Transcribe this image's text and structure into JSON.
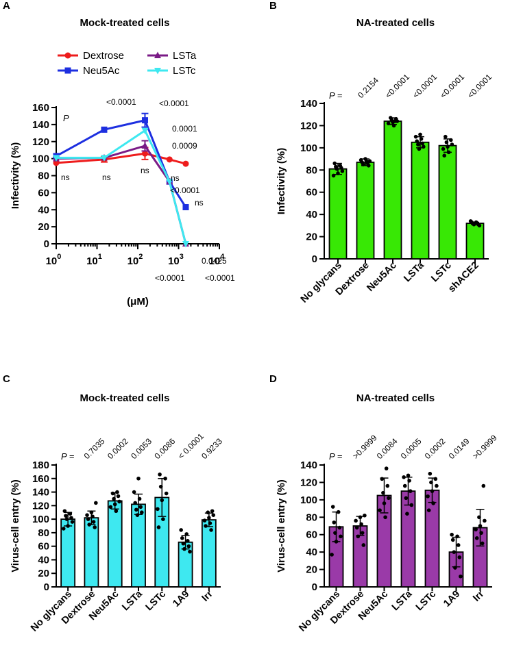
{
  "chart_data": [
    {
      "panel": "A",
      "type": "line",
      "title": "Mock-treated cells",
      "xlabel": "(μM)",
      "ylabel": "Infectivity (%)",
      "xscale": "log",
      "xlim_exp": [
        0,
        4
      ],
      "xtick_base": "10",
      "xtick_exponents": [
        "0",
        "1",
        "2",
        "3",
        "4"
      ],
      "ylim": [
        0,
        160
      ],
      "yticks": [
        0,
        20,
        40,
        60,
        80,
        100,
        120,
        140,
        160
      ],
      "p_label": "P",
      "legend": [
        {
          "name": "Dextrose",
          "color": "#ee1c1c",
          "marker": "circle"
        },
        {
          "name": "Neu5Ac",
          "color": "#1d2fe0",
          "marker": "square"
        },
        {
          "name": "LSTa",
          "color": "#7a1a86",
          "marker": "triangle"
        },
        {
          "name": "LSTc",
          "color": "#3ee8f0",
          "marker": "triangle-down"
        }
      ],
      "series": [
        {
          "name": "Dextrose",
          "x": [
            1,
            15,
            150,
            600,
            1500
          ],
          "y": [
            95,
            99,
            106,
            99,
            94
          ],
          "err": [
            0,
            3,
            7,
            0,
            0
          ]
        },
        {
          "name": "Neu5Ac",
          "x": [
            1,
            15,
            150,
            600,
            1500
          ],
          "y": [
            103,
            134,
            145,
            73,
            43
          ],
          "err": [
            0,
            0,
            8,
            0,
            0
          ]
        },
        {
          "name": "LSTa",
          "x": [
            1,
            15,
            150,
            600,
            1500
          ],
          "y": [
            100,
            101,
            115,
            73,
            0
          ],
          "err": [
            0,
            0,
            6,
            0,
            0
          ]
        },
        {
          "name": "LSTc",
          "x": [
            1,
            15,
            150,
            600,
            1500
          ],
          "y": [
            101,
            101,
            133,
            73,
            0
          ],
          "err": [
            0,
            0,
            0,
            0,
            0
          ]
        }
      ],
      "annotations": [
        "<0.0001",
        "<0.0001",
        "0.0001",
        "0.0009",
        "ns",
        "ns",
        "ns",
        "ns",
        "ns",
        "<0.0001",
        "0.0425",
        "<0.0001",
        "<0.0001"
      ]
    },
    {
      "panel": "B",
      "type": "bar",
      "title": "NA-treated cells",
      "ylabel": "Infectivity (%)",
      "bar_color": "#38e805",
      "ylim": [
        0,
        140
      ],
      "yticks": [
        0,
        20,
        40,
        60,
        80,
        100,
        120,
        140
      ],
      "p_label": "P =",
      "categories": [
        "No glycans",
        "Dextrose",
        "Neu5Ac",
        "LSTa",
        "LSTc",
        "shACE2"
      ],
      "values": [
        81,
        87,
        124,
        105,
        102,
        32
      ],
      "err": [
        5,
        3,
        3,
        5,
        6,
        1
      ],
      "pvalues": [
        "",
        "0.2154",
        "<0.0001",
        "<0.0001",
        "<0.0001",
        "<0.0001"
      ],
      "points": [
        [
          75,
          77,
          79,
          81,
          82,
          83,
          84,
          86
        ],
        [
          84,
          85,
          86,
          87,
          88,
          89,
          90,
          88
        ],
        [
          120,
          122,
          123,
          124,
          125,
          126,
          127,
          124
        ],
        [
          99,
          101,
          103,
          104,
          106,
          108,
          110,
          112
        ],
        [
          93,
          96,
          99,
          101,
          103,
          105,
          107,
          110
        ],
        [
          30,
          31,
          31,
          32,
          32,
          33,
          33,
          34
        ]
      ]
    },
    {
      "panel": "C",
      "type": "bar",
      "title": "Mock-treated cells",
      "ylabel": "Virus-cell entry (%)",
      "bar_color": "#3ee8f0",
      "ylim": [
        0,
        180
      ],
      "yticks": [
        0,
        20,
        40,
        60,
        80,
        100,
        120,
        140,
        160,
        180
      ],
      "p_label": "P =",
      "categories": [
        "No glycans",
        "Dextrose",
        "Neu5Ac",
        "LSTa",
        "LSTc",
        "1A9",
        "Irr"
      ],
      "values": [
        100,
        102,
        127,
        122,
        132,
        66,
        99
      ],
      "err": [
        10,
        10,
        12,
        15,
        28,
        10,
        10
      ],
      "pvalues": [
        "",
        "0.7035",
        "0.0002",
        "0.0053",
        "0.0086",
        "< 0.0001",
        "0.9233"
      ],
      "points": [
        [
          86,
          90,
          96,
          100,
          102,
          105,
          108,
          112
        ],
        [
          88,
          92,
          96,
          100,
          104,
          106,
          110,
          124
        ],
        [
          112,
          118,
          122,
          126,
          130,
          134,
          138,
          140
        ],
        [
          106,
          110,
          114,
          118,
          124,
          130,
          140,
          160
        ],
        [
          88,
          100,
          115,
          128,
          138,
          148,
          160,
          166
        ],
        [
          52,
          56,
          60,
          64,
          68,
          72,
          78,
          84
        ],
        [
          84,
          90,
          94,
          98,
          102,
          106,
          110,
          112
        ]
      ]
    },
    {
      "panel": "D",
      "type": "bar",
      "title": "NA-treated cells",
      "ylabel": "Virus-cell entry (%)",
      "bar_color": "#9a3aa8",
      "ylim": [
        0,
        140
      ],
      "yticks": [
        0,
        20,
        40,
        60,
        80,
        100,
        120,
        140
      ],
      "p_label": "P =",
      "categories": [
        "No glycans",
        "Dextrose",
        "Neu5Ac",
        "LSTa",
        "LSTc",
        "1A9",
        "Irr"
      ],
      "values": [
        69,
        70,
        105,
        110,
        111,
        40,
        68
      ],
      "err": [
        17,
        11,
        20,
        16,
        14,
        17,
        21
      ],
      "pvalues": [
        "",
        ">0.9999",
        "0.0084",
        "0.0005",
        "0.0002",
        "0.0149",
        ">0.9999"
      ],
      "points": [
        [
          37,
          52,
          58,
          62,
          68,
          74,
          86,
          92
        ],
        [
          48,
          58,
          62,
          68,
          72,
          76,
          80,
          82
        ],
        [
          80,
          88,
          96,
          102,
          108,
          116,
          124,
          136
        ],
        [
          84,
          94,
          102,
          110,
          116,
          122,
          126,
          128
        ],
        [
          88,
          96,
          104,
          110,
          116,
          120,
          124,
          130
        ],
        [
          12,
          22,
          34,
          40,
          48,
          54,
          58,
          60
        ],
        [
          50,
          56,
          62,
          66,
          70,
          76,
          80,
          116
        ]
      ]
    }
  ]
}
